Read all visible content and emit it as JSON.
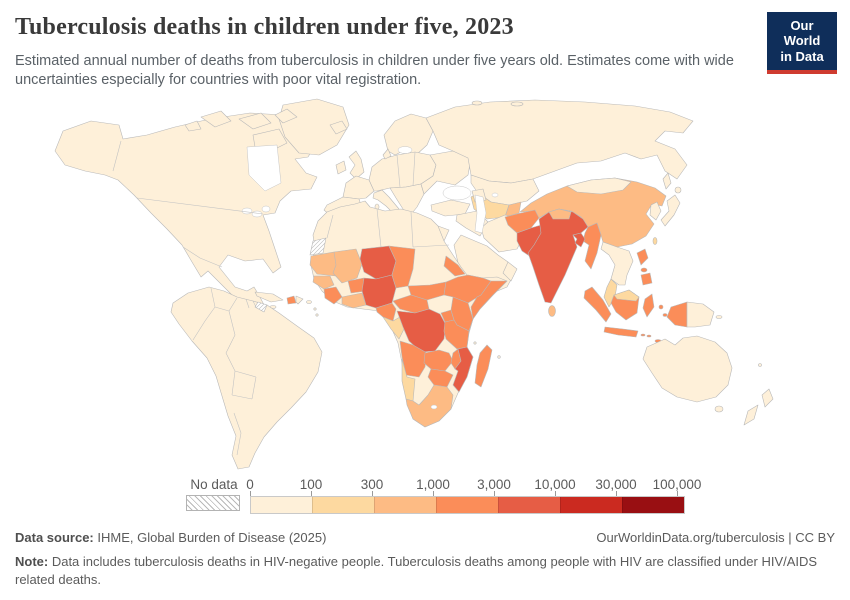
{
  "header": {
    "title": "Tuberculosis deaths in children under five, 2023",
    "subtitle": "Estimated annual number of deaths from tuberculosis in children under five years old. Estimates come with wide uncertainties especially for countries with poor vital registration.",
    "logo": {
      "line1": "Our World",
      "line2": "in Data",
      "bg_color": "#0f2e5a",
      "accent_color": "#cf3b30"
    }
  },
  "chart_data": {
    "type": "choropleth-map",
    "title": "Tuberculosis deaths in children under five",
    "year": "2023",
    "unit": "deaths per year",
    "legend": {
      "no_data_label": "No data",
      "tick_labels": [
        "0",
        "100",
        "300",
        "1,000",
        "3,000",
        "10,000",
        "30,000",
        "100,000"
      ],
      "bin_ranges": [
        "0-100",
        "100-300",
        "300-1,000",
        "1,000-3,000",
        "3,000-10,000",
        "10,000-30,000",
        "30,000-100,000"
      ],
      "bin_colors": [
        "#fef0d9",
        "#fdd9a0",
        "#fdbb84",
        "#fb8d59",
        "#e65d45",
        "#cb2a20",
        "#990f12"
      ],
      "no_data_pattern": "diagonal-hatch"
    },
    "regions": {
      "north-america": 0,
      "greenland": 0,
      "arctic-islands": 0,
      "cuba": 0,
      "jamaica": 0,
      "haiti": 3,
      "dominican-republic": 0,
      "puerto-rico": 0,
      "lesser-antilles": 0,
      "south-america": 0,
      "french-guiana": -1,
      "iceland": 0,
      "ireland": 0,
      "united-kingdom": 0,
      "iberia": 0,
      "france": 0,
      "central-europe": 0,
      "denmark": 0,
      "scandinavia": 0,
      "italy": 0,
      "balkans": 0,
      "eastern-europe": 0,
      "russia": 0,
      "kazakhstan": 0,
      "uzbekistan-turkmenistan": 1,
      "tajikistan-kyrgyzstan": 2,
      "turkey": 0,
      "caucasus": 0,
      "syria-iraq": 0,
      "iran": 0,
      "arabia": 0,
      "sinai": 0,
      "yemen": 1,
      "oman": 0,
      "africa-north-and-base": 0,
      "western-sahara": -1,
      "mauritania": 2,
      "mali": 2,
      "senegal": 2,
      "guinea": 3,
      "cote-divoire-ghana": 2,
      "burkina-faso": 3,
      "niger": 4,
      "nigeria": 4,
      "chad": 3,
      "eritrea-djibouti": 3,
      "south-sudan": 3,
      "ethiopia": 3,
      "somalia": 3,
      "cameroon": 3,
      "central-african-republic": 3,
      "gabon-congo": 1,
      "drc": 4,
      "uganda": 3,
      "kenya": 3,
      "tanzania": 3,
      "angola": 3,
      "zambia": 3,
      "malawi": 3,
      "mozambique": 4,
      "zimbabwe": 3,
      "namibia": 1,
      "south-africa": 2,
      "madagascar": 3,
      "indian-ocean-islands": 0,
      "afghanistan": 3,
      "pakistan": 4,
      "india": 4,
      "nepal": 2,
      "bangladesh": 4,
      "sri-lanka": 2,
      "myanmar": 3,
      "china": 2,
      "mongolia": 0,
      "korea": 0,
      "japan": 0,
      "taiwan": 1,
      "indochina": 0,
      "malay-peninsula": 1,
      "philippines": 3,
      "sumatra": 3,
      "java": 3,
      "borneo-indonesia": 3,
      "borneo-malaysia": 1,
      "sulawesi": 3,
      "maluku": 3,
      "lesser-sunda": 3,
      "west-papua": 3,
      "papua-new-guinea": 0,
      "pacific-islands": 0,
      "australia": 0,
      "tasmania": 0,
      "new-zealand": 0
    },
    "map_stroke_color": "#b9b9b9",
    "ocean_color": "#ffffff"
  },
  "footer": {
    "source_label": "Data source:",
    "source_text": " IHME, Global Burden of Disease (2025)",
    "link_text": "OurWorldinData.org/tuberculosis | CC BY",
    "note_label": "Note:",
    "note_text": " Data includes tuberculosis deaths in HIV-negative people. Tuberculosis deaths among people with HIV are classified under HIV/AIDS related deaths."
  }
}
